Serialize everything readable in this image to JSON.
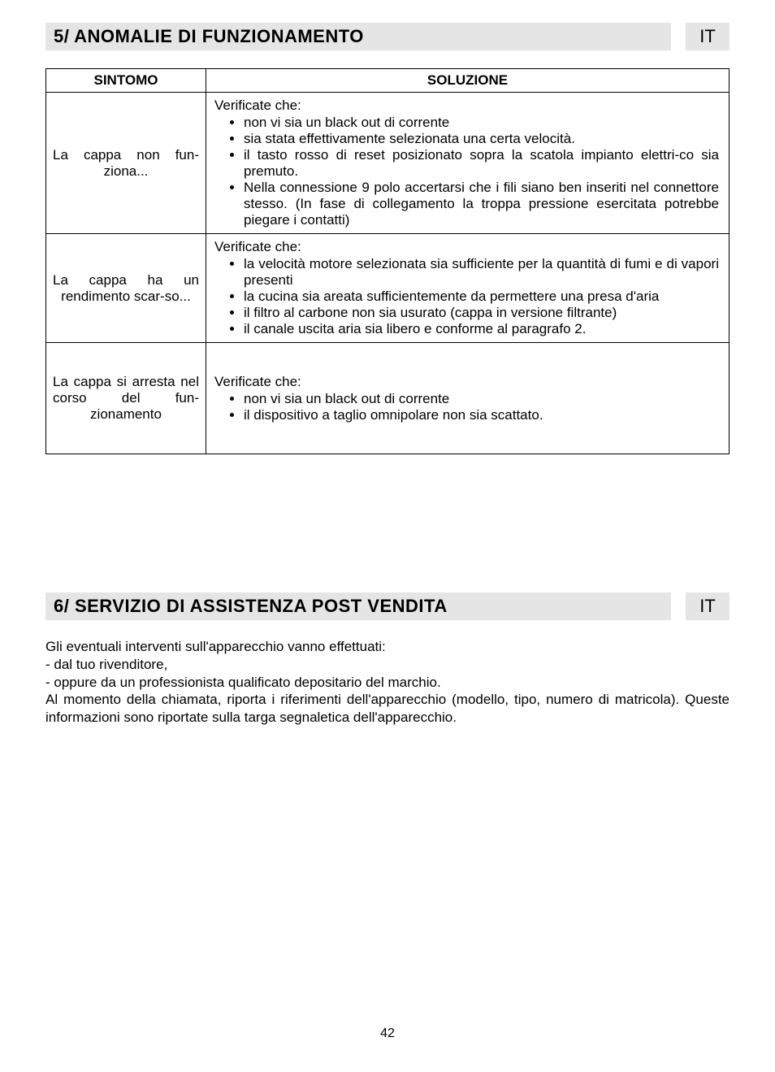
{
  "section5": {
    "title": "5/ ANOMALIE DI FUNZIONAMENTO",
    "lang": "IT",
    "table": {
      "head_symptom": "SINTOMO",
      "head_solution": "SOLUZIONE",
      "rows": [
        {
          "symptom": "La cappa non fun-ziona...",
          "lead": "Verificate che:",
          "items": [
            "non vi sia un black out di corrente",
            "sia stata effettivamente selezionata una certa velocità.",
            "il tasto rosso di reset posizionato sopra la scatola impianto elettri-co sia premuto.",
            "Nella connessione 9 polo accertarsi che i fili siano ben inseriti nel connettore stesso. (In fase di collegamento la troppa pressione esercitata potrebbe piegare i contatti)"
          ]
        },
        {
          "symptom": "La cappa ha un rendimento scar-so...",
          "lead": "Verificate che:",
          "items": [
            "la velocità motore selezionata sia sufficiente per la quantità di fumi e di vapori presenti",
            "la cucina sia areata sufficientemente da permettere una presa d'aria",
            "il filtro al carbone non sia usurato (cappa in versione filtrante)",
            "il canale uscita aria sia libero e conforme al paragrafo 2."
          ]
        },
        {
          "symptom": "La cappa si arresta nel corso del fun-zionamento",
          "lead": "Verificate che:",
          "items": [
            "non vi sia un black out di corrente",
            "il dispositivo a taglio omnipolare non sia scattato."
          ]
        }
      ]
    }
  },
  "section6": {
    "title": "6/ SERVIZIO DI ASSISTENZA POST VENDITA",
    "lang": "IT",
    "paragraphs": [
      "Gli eventuali interventi sull'apparecchio vanno effettuati:",
      "- dal tuo rivenditore,",
      "- oppure da un professionista qualificato depositario del marchio.",
      "Al momento della chiamata, riporta i riferimenti dell'apparecchio (modello, tipo, numero di matricola). Queste informazioni sono riportate sulla targa segnaletica dell'apparecchio."
    ]
  },
  "page_number": "42",
  "colors": {
    "header_bg": "#e5e5e5",
    "border": "#000000",
    "text": "#000000",
    "page_bg": "#ffffff"
  },
  "typography": {
    "title_fontsize": 22,
    "title_weight": "bold",
    "body_fontsize": 17
  }
}
